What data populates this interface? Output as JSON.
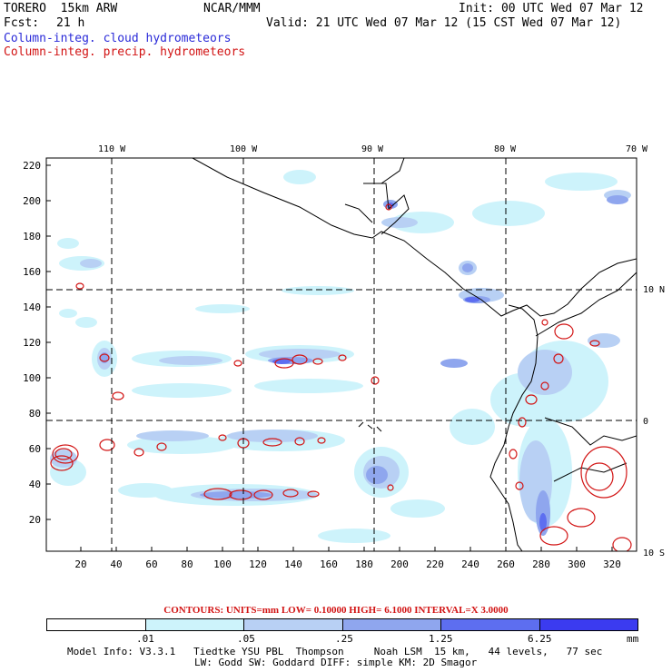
{
  "header": {
    "model": "TORERO  15km ARW",
    "org": "NCAR/MMM",
    "init": "Init: 00 UTC Wed 07 Mar 12",
    "fcst_label": "Fcst:",
    "fcst_value": "21 h",
    "valid": "Valid: 21 UTC Wed 07 Mar 12 (15 CST Wed 07 Mar 12)",
    "field1": "Column-integ. cloud hydrometeors",
    "field2": "Column-integ. precip. hydrometeors"
  },
  "map": {
    "lon_labels": [
      "110 W",
      "100 W",
      "90 W",
      "80 W",
      "70 W"
    ],
    "lat_labels": [
      "10 N",
      "0",
      "10 S"
    ],
    "y_ticks": [
      "220",
      "200",
      "180",
      "160",
      "140",
      "120",
      "100",
      "80",
      "60",
      "40",
      "20"
    ],
    "x_ticks": [
      "20",
      "40",
      "60",
      "80",
      "100",
      "120",
      "140",
      "160",
      "180",
      "200",
      "220",
      "240",
      "260",
      "280",
      "300",
      "320"
    ],
    "colors": {
      "light": "#cdf3fb",
      "lightblue": "#b8d0f4",
      "mid": "#8fa6ee",
      "strong": "#5d6ef0",
      "contour": "#d21414",
      "land": "#000000"
    }
  },
  "contours": "CONTOURS:  UNITS=mm  LOW= 0.10000      HIGH=  6.1000      INTERVAL=X  3.0000",
  "colorbar": {
    "labels": [
      ".01",
      ".05",
      ".25",
      "1.25",
      "6.25"
    ],
    "unit": "mm",
    "colors": [
      "#ffffff",
      "#cdf3fb",
      "#b8d0f4",
      "#8fa6ee",
      "#5d6ef0",
      "#3b3bf0"
    ]
  },
  "footer": {
    "line1": "Model Info: V3.3.1   Tiedtke YSU PBL  Thompson     Noah LSM  15 km,   44 levels,   77 sec",
    "line2": "LW: Godd SW: Goddard DIFF: simple KM: 2D Smagor"
  }
}
